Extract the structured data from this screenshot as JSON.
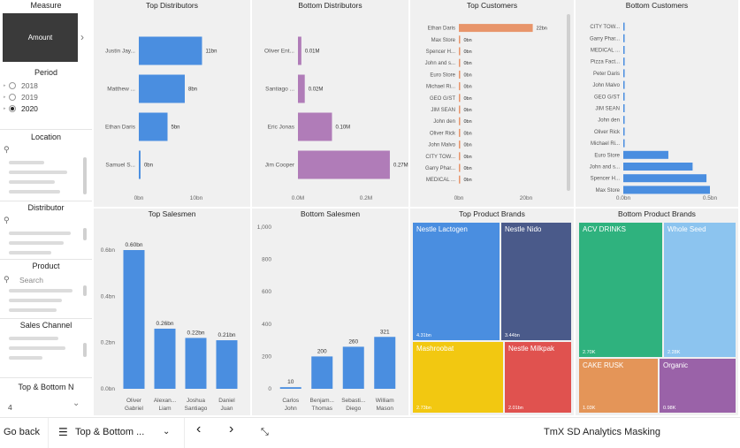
{
  "slicers": {
    "measure": {
      "title": "Measure",
      "selected": "Amount"
    },
    "period": {
      "title": "Period",
      "options": [
        "2018",
        "2019",
        "2020"
      ],
      "selected": "2020"
    },
    "location": {
      "title": "Location"
    },
    "distributor": {
      "title": "Distributor"
    },
    "product": {
      "title": "Product",
      "search_placeholder": "Search"
    },
    "sales_channel": {
      "title": "Sales Channel"
    },
    "topn": {
      "title": "Top & Bottom N",
      "value": "4"
    }
  },
  "panels": {
    "top_distributors": "Top Distributors",
    "bottom_distributors": "Bottom Distributors",
    "top_customers": "Top Customers",
    "bottom_customers": "Bottom Customers",
    "top_salesmen": "Top Salesmen",
    "bottom_salesmen": "Bottom Salesmen",
    "top_brands": "Top Product Brands",
    "bottom_brands": "Bottom Product Brands"
  },
  "chart_data": [
    {
      "id": "top_distributors",
      "type": "bar",
      "orientation": "horizontal",
      "title": "Top Distributors",
      "color": "#4a8ee0",
      "categories": [
        "Justin Jay...",
        "Matthew ...",
        "Ethan Daris",
        "Samuel S..."
      ],
      "values": [
        11,
        8,
        5,
        0.3
      ],
      "data_labels": [
        "11bn",
        "8bn",
        "5bn",
        "0bn"
      ],
      "xlim": [
        0,
        10
      ],
      "xticks": [
        "0bn",
        "10bn"
      ]
    },
    {
      "id": "bottom_distributors",
      "type": "bar",
      "orientation": "horizontal",
      "title": "Bottom Distributors",
      "color": "#b07cb8",
      "categories": [
        "Oliver Ent...",
        "Santiago ...",
        "Eric Jonas",
        "Jim Cooper"
      ],
      "values": [
        0.01,
        0.02,
        0.1,
        0.27
      ],
      "data_labels": [
        "0.01M",
        "0.02M",
        "0.10M",
        "0.27M"
      ],
      "xlim": [
        0,
        0.2
      ],
      "xticks": [
        "0.0M",
        "0.2M"
      ]
    },
    {
      "id": "top_customers",
      "type": "bar",
      "orientation": "horizontal",
      "title": "Top Customers",
      "color": "#e8956a",
      "categories": [
        "Ethan Daris",
        "Max Store",
        "Spencer H...",
        "John and s...",
        "Euro Store",
        "Michael Ri...",
        "GEO G/ST",
        "JIM SEAN",
        "John den",
        "Oliver Rick",
        "John Malvo",
        "CITY TOW...",
        "Garry Phar...",
        "MEDICAL ..."
      ],
      "values": [
        22,
        0.05,
        0.05,
        0.05,
        0.05,
        0.05,
        0.05,
        0.05,
        0.05,
        0.05,
        0.05,
        0.05,
        0.05,
        0.05
      ],
      "data_labels": [
        "22bn",
        "0bn",
        "0bn",
        "0bn",
        "0bn",
        "0bn",
        "0bn",
        "0bn",
        "0bn",
        "0bn",
        "0bn",
        "0bn",
        "0bn",
        "0bn"
      ],
      "xlim": [
        0,
        20
      ],
      "xticks": [
        "0bn",
        "20bn"
      ]
    },
    {
      "id": "bottom_customers",
      "type": "bar",
      "orientation": "horizontal",
      "title": "Bottom Customers",
      "color": "#4a8ee0",
      "categories": [
        "CITY TOW...",
        "Garry Phar...",
        "MEDICAL ...",
        "Pizza Fact...",
        "Peter Daris",
        "John Malvo",
        "GEO G/ST",
        "JIM SEAN",
        "John den",
        "Oliver Rick",
        "Michael Ri...",
        "Euro Store",
        "John and s...",
        "Spencer H...",
        "Max Store"
      ],
      "values": [
        0,
        0,
        0,
        0,
        0,
        0,
        0,
        0,
        0,
        0,
        0,
        0.26,
        0.4,
        0.48,
        0.5
      ],
      "xlim": [
        0,
        0.5
      ],
      "xticks": [
        "0.0bn",
        "0.5bn"
      ]
    },
    {
      "id": "top_salesmen",
      "type": "bar",
      "orientation": "vertical",
      "title": "Top Salesmen",
      "color": "#4a8ee0",
      "categories": [
        [
          "Oliver",
          "Gabriel"
        ],
        [
          "Alexan...",
          "Liam"
        ],
        [
          "Joshua",
          "Santiago"
        ],
        [
          "Daniel",
          "Juan"
        ]
      ],
      "values": [
        0.6,
        0.26,
        0.22,
        0.21
      ],
      "data_labels": [
        "0.60bn",
        "0.26bn",
        "0.22bn",
        "0.21bn"
      ],
      "ylim": [
        0,
        0.6
      ],
      "yticks": [
        "0.0bn",
        "0.2bn",
        "0.4bn",
        "0.6bn"
      ]
    },
    {
      "id": "bottom_salesmen",
      "type": "bar",
      "orientation": "vertical",
      "title": "Bottom Salesmen",
      "color": "#4a8ee0",
      "categories": [
        [
          "Carlos",
          "John"
        ],
        [
          "Benjam...",
          "Thomas"
        ],
        [
          "Sebasti...",
          "Diego"
        ],
        [
          "William",
          "Mason"
        ]
      ],
      "values": [
        10,
        200,
        260,
        321
      ],
      "data_labels": [
        "10",
        "200",
        "260",
        "321"
      ],
      "ylim": [
        0,
        1000
      ],
      "yticks": [
        "0",
        "200",
        "400",
        "600",
        "800",
        "1,000"
      ]
    },
    {
      "id": "top_brands",
      "type": "treemap",
      "title": "Top Product Brands",
      "items": [
        {
          "label": "Nestle Lactogen",
          "value_label": "4.31bn",
          "color": "#4a8ee0"
        },
        {
          "label": "Nestle Nido",
          "value_label": "3.44bn",
          "color": "#4a5a8a"
        },
        {
          "label": "Mashroobat",
          "value_label": "2.73bn",
          "color": "#f2c811"
        },
        {
          "label": "Nestle Milkpak",
          "value_label": "2.01bn",
          "color": "#e0524f"
        }
      ]
    },
    {
      "id": "bottom_brands",
      "type": "treemap",
      "title": "Bottom Product Brands",
      "items": [
        {
          "label": "ACV DRINKS",
          "value_label": "2.70K",
          "color": "#2fb27e"
        },
        {
          "label": "Whole Seed",
          "value_label": "2.28K",
          "color": "#8cc4ef"
        },
        {
          "label": "CAKE RUSK",
          "value_label": "1.03K",
          "color": "#e49558"
        },
        {
          "label": "Organic",
          "value_label": "0.98K",
          "color": "#9a62a8"
        }
      ]
    }
  ],
  "bottom_bar": {
    "back_label": "Go back",
    "page_label": "Top & Bottom ...",
    "report_name": "TmX SD Analytics Masking"
  }
}
